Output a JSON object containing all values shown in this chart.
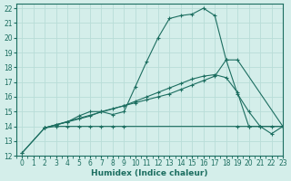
{
  "xlabel": "Humidex (Indice chaleur)",
  "xlim": [
    -0.5,
    23
  ],
  "ylim": [
    12,
    22.3
  ],
  "xticks": [
    0,
    1,
    2,
    3,
    4,
    5,
    6,
    7,
    8,
    9,
    10,
    11,
    12,
    13,
    14,
    15,
    16,
    17,
    18,
    19,
    20,
    21,
    22,
    23
  ],
  "yticks": [
    12,
    13,
    14,
    15,
    16,
    17,
    18,
    19,
    20,
    21,
    22
  ],
  "bg_color": "#d4eeea",
  "grid_color": "#b8ddd7",
  "line_color": "#1c6e60",
  "line1_x": [
    0,
    2,
    3,
    4,
    5,
    6,
    7,
    8,
    9,
    10,
    11,
    12,
    13,
    14,
    15,
    16,
    17,
    18,
    19,
    20,
    21,
    22,
    23
  ],
  "line1_y": [
    12.2,
    13.9,
    14.1,
    14.3,
    14.7,
    15.0,
    15.0,
    14.8,
    15.0,
    16.7,
    18.4,
    20.0,
    21.3,
    21.5,
    21.6,
    22.0,
    21.5,
    18.5,
    16.2,
    15.0,
    14.0,
    13.5,
    14.0
  ],
  "line2_x": [
    2,
    3,
    4,
    5,
    6,
    7,
    8,
    9,
    10,
    11,
    12,
    13,
    14,
    15,
    16,
    17,
    18,
    19,
    20,
    23
  ],
  "line2_y": [
    13.9,
    14.1,
    14.3,
    14.5,
    14.7,
    15.0,
    15.2,
    15.4,
    15.7,
    16.0,
    16.3,
    16.6,
    16.9,
    17.2,
    17.4,
    17.5,
    17.3,
    16.3,
    14.0,
    14.0
  ],
  "line3_x": [
    0,
    2,
    9,
    10,
    11,
    12,
    13,
    14,
    15,
    16,
    17,
    18,
    19,
    23
  ],
  "line3_y": [
    12.2,
    13.9,
    15.4,
    15.6,
    15.8,
    16.0,
    16.2,
    16.5,
    16.8,
    17.1,
    17.4,
    18.5,
    18.5,
    14.0
  ],
  "line4_x": [
    2,
    3,
    4,
    5,
    6,
    7,
    8,
    9,
    19,
    20,
    21,
    22,
    23
  ],
  "line4_y": [
    13.9,
    14.0,
    14.0,
    14.0,
    14.0,
    14.0,
    14.0,
    14.0,
    14.0,
    14.0,
    14.0,
    14.0,
    14.0
  ]
}
